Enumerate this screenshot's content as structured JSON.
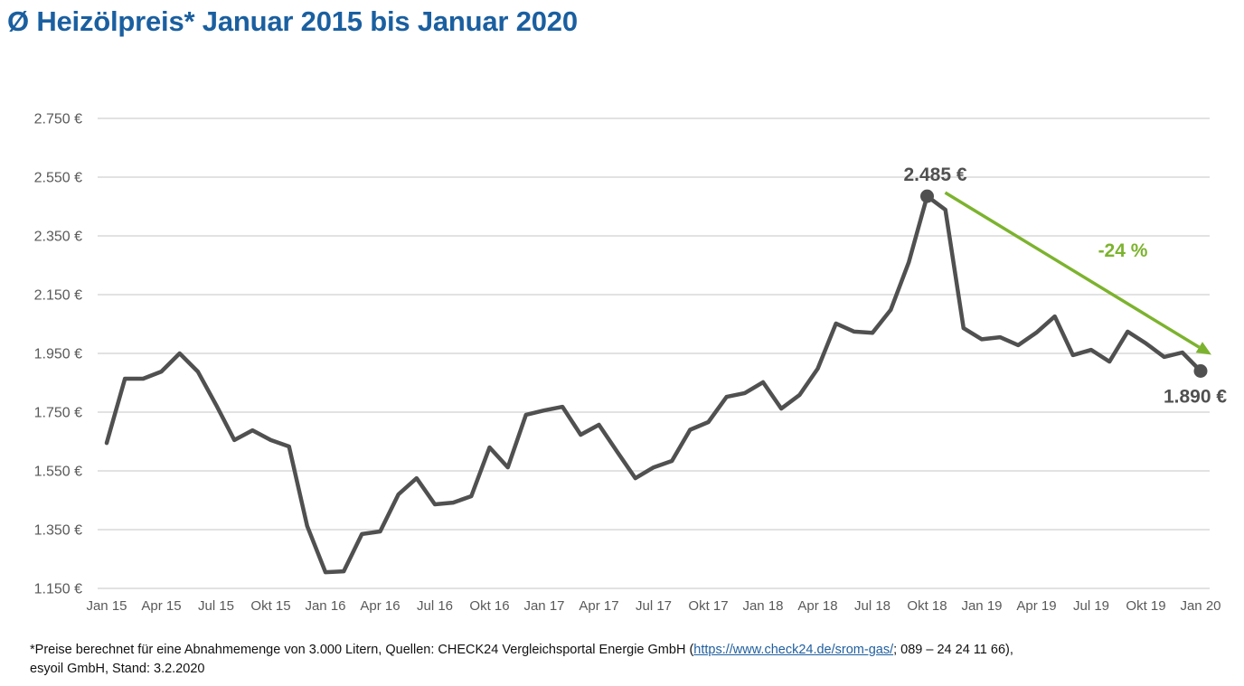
{
  "title": "Ø Heizölpreis* Januar 2015 bis Januar 2020",
  "footnote": {
    "prefix": "*Preise berechnet für eine Abnahmemenge von 3.000 Litern, Quellen: CHECK24 Vergleichsportal Energie GmbH (",
    "link": "https://www.check24.de/srom-gas/",
    "suffix_line1": "; 089 – 24 24 11 66),",
    "line2": "esyoil GmbH, Stand: 3.2.2020"
  },
  "colors": {
    "title": "#1a5fa0",
    "line": "#505050",
    "grid": "#d9d9d9",
    "axis_text": "#595959",
    "arrow": "#7cb32e"
  },
  "chart_data": {
    "type": "line",
    "title": "Ø Heizölpreis* Januar 2015 bis Januar 2020",
    "xlabel": "",
    "ylabel": "",
    "ylim": [
      1150,
      2750
    ],
    "yticks": [
      1150,
      1350,
      1550,
      1750,
      1950,
      2150,
      2350,
      2550,
      2750
    ],
    "ytick_labels": [
      "1.150 €",
      "1.350 €",
      "1.550 €",
      "1.750 €",
      "1.950 €",
      "2.150 €",
      "2.350 €",
      "2.550 €",
      "2.750 €"
    ],
    "xtick_labels": [
      "Jan 15",
      "Apr 15",
      "Jul 15",
      "Okt 15",
      "Jan 16",
      "Apr 16",
      "Jul 16",
      "Okt 16",
      "Jan 17",
      "Apr 17",
      "Jul 17",
      "Okt 17",
      "Jan 18",
      "Apr 18",
      "Jul 18",
      "Okt 18",
      "Jan 19",
      "Apr 19",
      "Jul 19",
      "Okt 19",
      "Jan 20"
    ],
    "xtick_step_months": 3,
    "grid": true,
    "legend": "none",
    "series": [
      {
        "name": "Heizölpreis",
        "x_start": "Jan 15",
        "frequency": "monthly",
        "values": [
          1645,
          1864,
          1864,
          1888,
          1950,
          1888,
          1775,
          1655,
          1688,
          1655,
          1633,
          1362,
          1205,
          1208,
          1335,
          1344,
          1470,
          1525,
          1436,
          1442,
          1464,
          1630,
          1562,
          1741,
          1756,
          1768,
          1673,
          1707,
          1615,
          1525,
          1562,
          1584,
          1690,
          1716,
          1802,
          1815,
          1852,
          1762,
          1808,
          1898,
          2052,
          2024,
          2020,
          2098,
          2261,
          2485,
          2439,
          2036,
          1998,
          2005,
          1978,
          2021,
          2076,
          1944,
          1962,
          1922,
          2024,
          1984,
          1938,
          1953,
          1890
        ]
      }
    ],
    "annotations": [
      {
        "label": "2.485 €",
        "at": "Okt 18",
        "value": 2485,
        "marker": "dot"
      },
      {
        "label": "1.890 €",
        "at": "Jan 20",
        "value": 1890,
        "marker": "dot"
      },
      {
        "label": "-24 %",
        "type": "trend-arrow",
        "from": "Okt 18",
        "to": "Jan 20"
      }
    ]
  }
}
